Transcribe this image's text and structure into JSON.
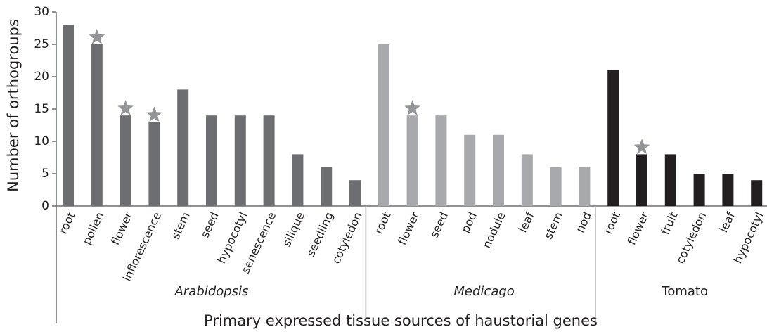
{
  "chart_data": {
    "type": "bar",
    "y_axis_label": "Number of orthogroups",
    "x_axis_label": "Primary expressed tissue sources of haustorial genes",
    "ylim": [
      0,
      30
    ],
    "yticks": [
      0,
      5,
      10,
      15,
      20,
      25,
      30
    ],
    "groups": [
      {
        "name": "Arabidopsis",
        "italic": true,
        "color": "#6d6e71",
        "categories": [
          "root",
          "pollen",
          "flower",
          "inflorescence",
          "stem",
          "seed",
          "hypocotyl",
          "senescence",
          "silique",
          "seedling",
          "cotyledon"
        ],
        "values": [
          28,
          25,
          14,
          13,
          18,
          14,
          14,
          14,
          8,
          6,
          4
        ],
        "star": [
          false,
          true,
          true,
          true,
          false,
          false,
          false,
          false,
          false,
          false,
          false
        ]
      },
      {
        "name": "Medicago",
        "italic": true,
        "color": "#a7a9ac",
        "categories": [
          "root",
          "flower",
          "seed",
          "pod",
          "nodule",
          "leaf",
          "stem",
          "nod"
        ],
        "values": [
          25,
          14,
          14,
          11,
          11,
          8,
          6,
          6
        ],
        "star": [
          false,
          true,
          false,
          false,
          false,
          false,
          false,
          false
        ]
      },
      {
        "name": "Tomato",
        "italic": false,
        "color": "#231f20",
        "categories": [
          "root",
          "flower",
          "fruit",
          "cotyledon",
          "leaf",
          "hypocotyl"
        ],
        "values": [
          21,
          8,
          8,
          5,
          5,
          4
        ],
        "star": [
          false,
          true,
          false,
          false,
          false,
          false
        ]
      }
    ],
    "star_color": "#939598"
  }
}
